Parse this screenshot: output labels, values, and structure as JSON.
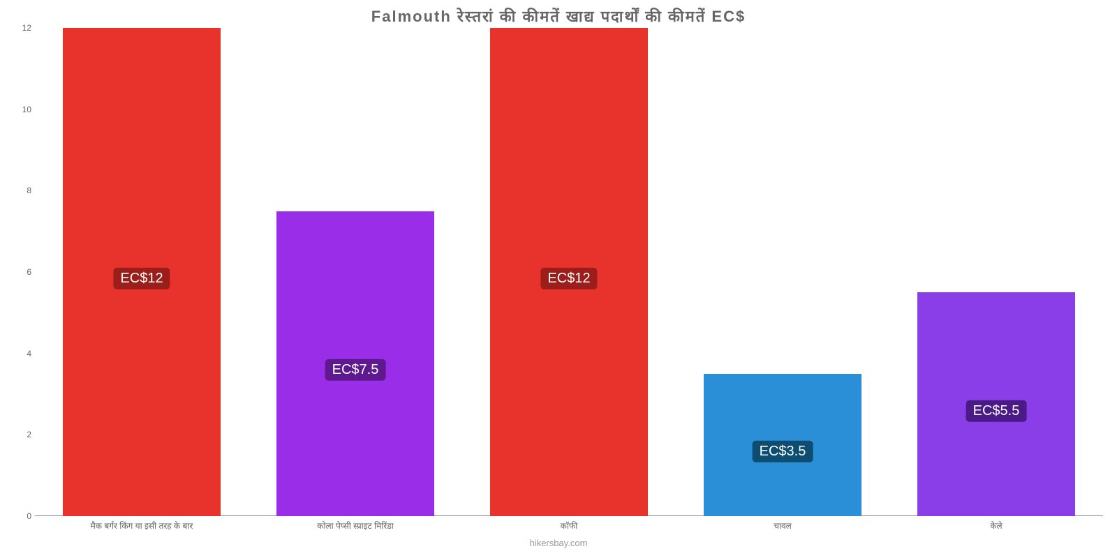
{
  "chart": {
    "type": "bar",
    "title": "Falmouth रेस्तरां की कीमतें खाद्य पदार्थों की कीमतें EC$",
    "title_fontsize": 22,
    "title_color": "#666666",
    "background_color": "#ffffff",
    "axis_color": "#888888",
    "ylim": [
      0,
      12
    ],
    "ytick_step": 2,
    "yticks": [
      0,
      2,
      4,
      6,
      8,
      10,
      12
    ],
    "bar_width_pct": 74,
    "categories": [
      "मैक बर्गर किंग या इसी तरह के बार",
      "कोला पेप्सी स्प्राइट मिरिंडा",
      "कॉफी",
      "चावल",
      "केले"
    ],
    "values": [
      12,
      7.5,
      12,
      3.5,
      5.5
    ],
    "value_labels": [
      "EC$12",
      "EC$7.5",
      "EC$12",
      "EC$3.5",
      "EC$5.5"
    ],
    "bar_colors": [
      "#e8332c",
      "#9a2ee8",
      "#e8332c",
      "#2a8fd6",
      "#8a3ee8"
    ],
    "badge_colors": [
      "#9b1e1a",
      "#5f198f",
      "#9b1e1a",
      "#0d4d72",
      "#4a1a87"
    ],
    "label_fontsize": 12,
    "label_color": "#666666",
    "badge_fontsize": 20,
    "watermark": "hikersbay.com",
    "watermark_color": "#999999"
  }
}
